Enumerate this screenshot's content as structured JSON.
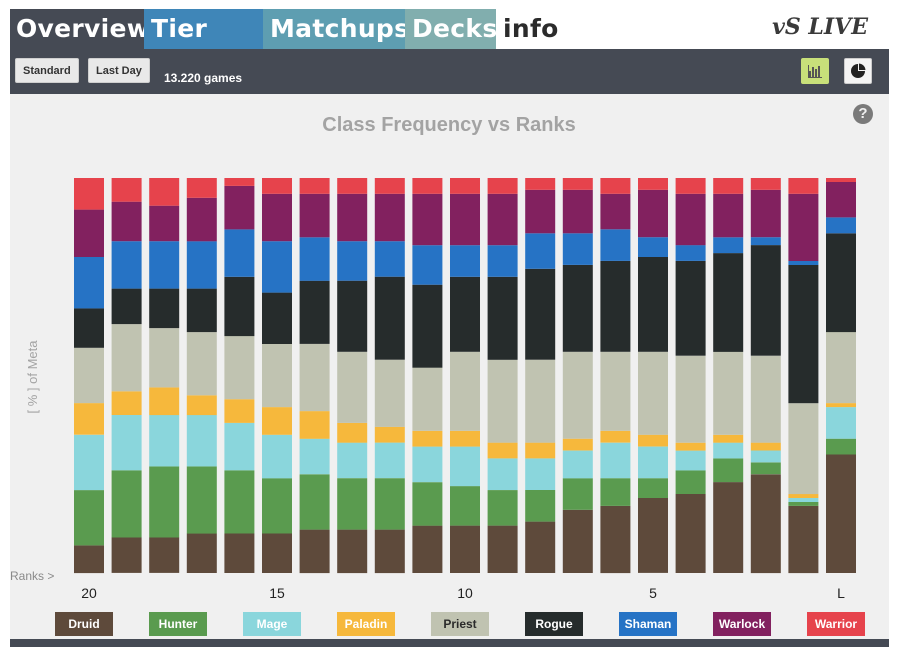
{
  "tabs": [
    {
      "label": "Overview"
    },
    {
      "label": "Tier List"
    },
    {
      "label": "Matchups"
    },
    {
      "label": "Decks"
    },
    {
      "label": "info"
    }
  ],
  "logo_text": "vS LIVE",
  "toolbar": {
    "standard_label": "Standard",
    "lastday_label": "Last Day",
    "games_text": "13.220 games",
    "bar_icon": "bar-chart-icon",
    "pie_icon": "pie-chart-icon"
  },
  "help_label": "?",
  "chart_data": {
    "type": "bar",
    "stacked": true,
    "normalized": true,
    "title": "Class Frequency vs Ranks",
    "ylabel": "[ % ] of Meta",
    "xlabel": "Ranks >",
    "ylim": [
      0,
      100
    ],
    "categories": [
      "20",
      "19",
      "18",
      "17",
      "16",
      "15",
      "14",
      "13",
      "12",
      "11",
      "10",
      "9",
      "8",
      "7",
      "6",
      "5",
      "4",
      "3",
      "2",
      "1",
      "L"
    ],
    "tick_labels": [
      {
        "index": 0,
        "label": "20"
      },
      {
        "index": 5,
        "label": "15"
      },
      {
        "index": 10,
        "label": "10"
      },
      {
        "index": 15,
        "label": "5"
      },
      {
        "index": 20,
        "label": "L"
      }
    ],
    "series": [
      {
        "name": "Druid",
        "color": "#5e4a3b",
        "values": [
          7,
          9,
          9,
          10,
          10,
          10,
          11,
          11,
          11,
          12,
          12,
          12,
          13,
          16,
          17,
          19,
          20,
          23,
          25,
          17,
          30
        ]
      },
      {
        "name": "Hunter",
        "color": "#5a9b4f",
        "values": [
          14,
          17,
          18,
          17,
          16,
          14,
          14,
          13,
          13,
          11,
          10,
          9,
          8,
          8,
          7,
          5,
          6,
          6,
          3,
          1,
          4
        ]
      },
      {
        "name": "Mage",
        "color": "#8ad6dc",
        "values": [
          14,
          14,
          13,
          13,
          12,
          11,
          9,
          9,
          9,
          9,
          10,
          8,
          8,
          7,
          9,
          8,
          5,
          4,
          3,
          1,
          8
        ]
      },
      {
        "name": "Paladin",
        "color": "#f6b83c",
        "values": [
          8,
          6,
          7,
          5,
          6,
          7,
          7,
          5,
          4,
          4,
          4,
          4,
          4,
          3,
          3,
          3,
          2,
          2,
          2,
          1,
          1
        ]
      },
      {
        "name": "Priest",
        "color": "#c0c3b1",
        "values": [
          14,
          17,
          15,
          16,
          16,
          16,
          17,
          18,
          17,
          16,
          20,
          21,
          21,
          22,
          20,
          21,
          22,
          21,
          22,
          23,
          18
        ]
      },
      {
        "name": "Rogue",
        "color": "#262c2c",
        "values": [
          10,
          9,
          10,
          11,
          15,
          13,
          16,
          18,
          21,
          21,
          19,
          21,
          23,
          22,
          23,
          24,
          24,
          25,
          28,
          35,
          25
        ]
      },
      {
        "name": "Shaman",
        "color": "#2673c5",
        "values": [
          13,
          12,
          12,
          12,
          12,
          13,
          11,
          10,
          9,
          10,
          8,
          8,
          9,
          8,
          8,
          5,
          4,
          4,
          2,
          1,
          4
        ]
      },
      {
        "name": "Warlock",
        "color": "#82215f",
        "values": [
          12,
          10,
          9,
          11,
          11,
          12,
          11,
          12,
          12,
          13,
          13,
          13,
          11,
          11,
          9,
          12,
          13,
          11,
          12,
          17,
          9
        ]
      },
      {
        "name": "Warrior",
        "color": "#e6434c",
        "values": [
          8,
          6,
          7,
          5,
          2,
          4,
          4,
          4,
          4,
          4,
          4,
          4,
          3,
          3,
          4,
          3,
          4,
          4,
          3,
          4,
          1
        ]
      }
    ],
    "legend_position": "bottom",
    "grid": false
  }
}
